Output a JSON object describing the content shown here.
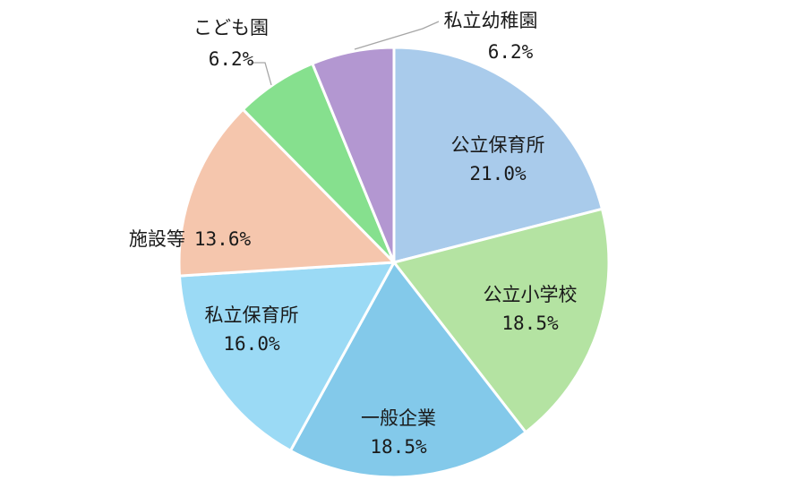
{
  "chart_data": {
    "type": "pie",
    "title": "",
    "slices": [
      {
        "label": "公立保育所",
        "value": 21.0,
        "value_label": "21.0%",
        "color": "#a9cbeb"
      },
      {
        "label": "公立小学校",
        "value": 18.5,
        "value_label": "18.5%",
        "color": "#b4e3a2"
      },
      {
        "label": "一般企業",
        "value": 18.5,
        "value_label": "18.5%",
        "color": "#83c9ea"
      },
      {
        "label": "私立保育所",
        "value": 16.0,
        "value_label": "16.0%",
        "color": "#9bdaf5"
      },
      {
        "label": "施設等",
        "value": 13.6,
        "value_label": "13.6%",
        "color": "#f5c6ad"
      },
      {
        "label": "こども園",
        "value": 6.2,
        "value_label": "6.2%",
        "color": "#86e08e"
      },
      {
        "label": "私立幼稚園",
        "value": 6.2,
        "value_label": "6.2%",
        "color": "#b397d1"
      }
    ],
    "start_angle": "12 o'clock",
    "direction": "clockwise",
    "legend": "none",
    "label_position": "inside, except こども園 and 私立幼稚園 outside with leader lines"
  }
}
